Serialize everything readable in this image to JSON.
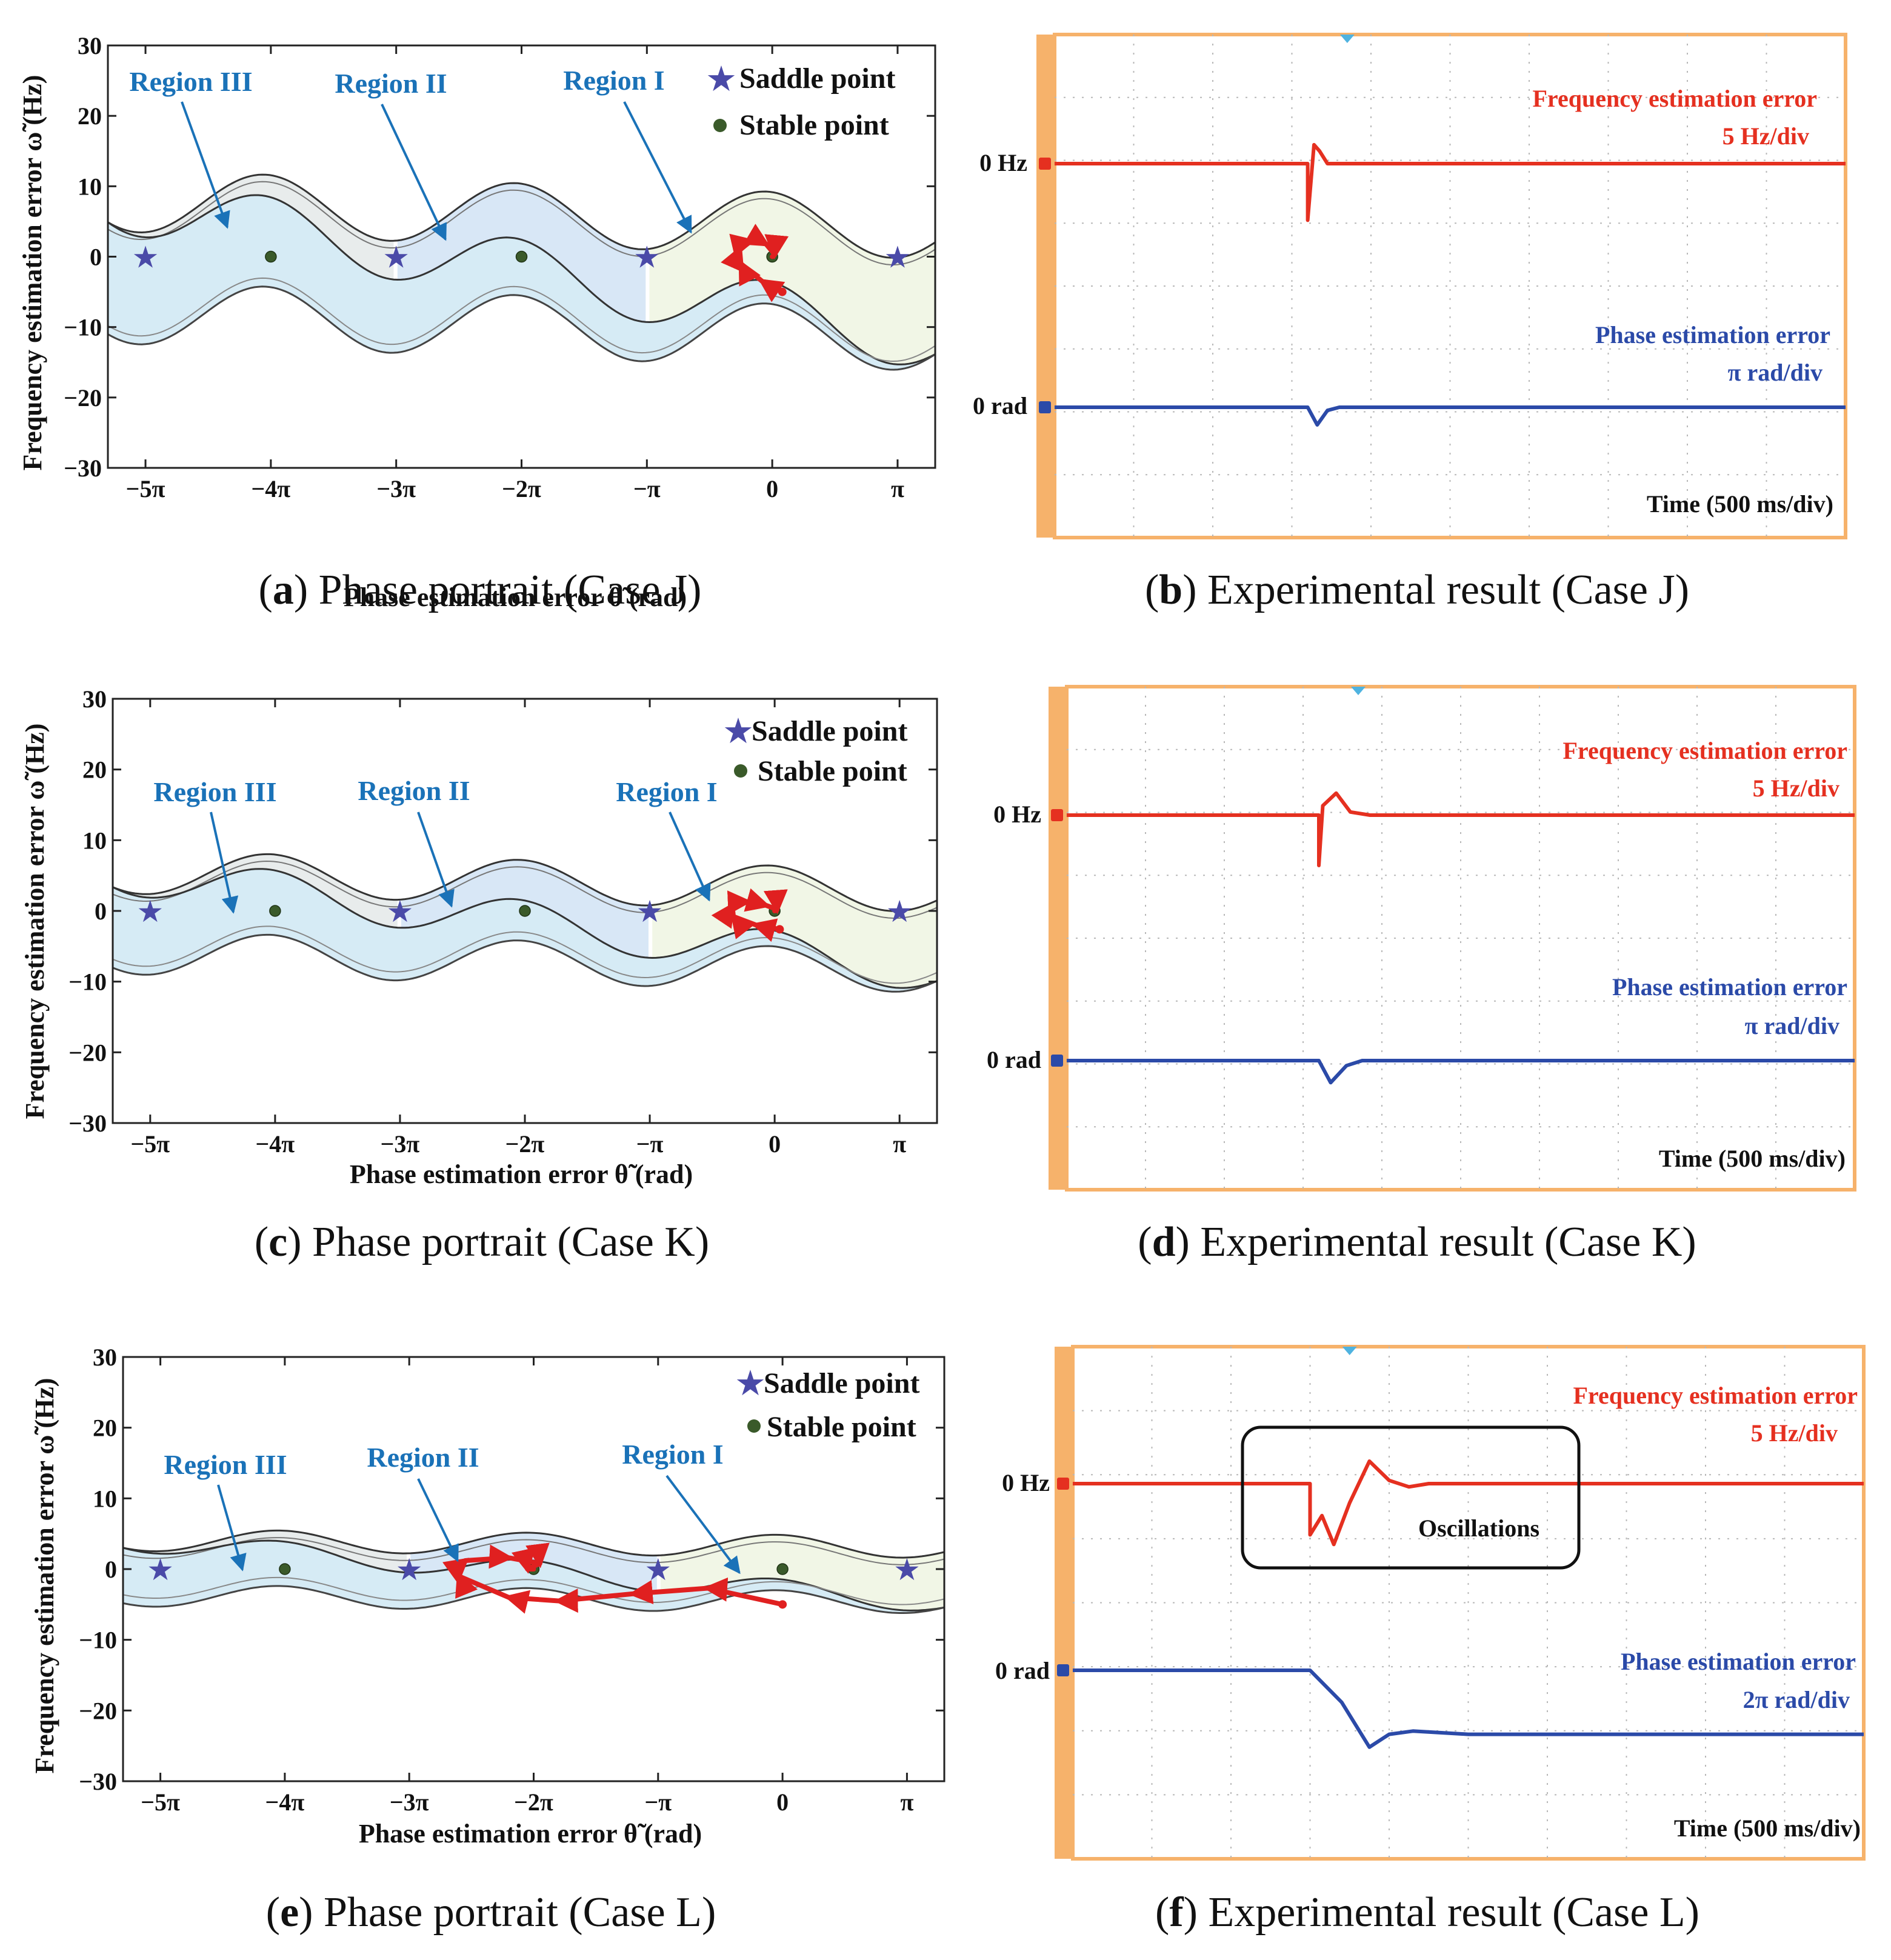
{
  "colors": {
    "saddle": "#4a4aa8",
    "stable": "#3a5a2a",
    "trajectory": "#e02020",
    "region_label": "#1a72b8",
    "region1_fill": "#f1f6e6",
    "region2_fill": "#d8e7f6",
    "region3_fill": "#e8ecec",
    "band_fill": "#cfe7f3",
    "scope_frame": "#f6b26b",
    "scope_red": "#e53020",
    "scope_blue": "#2b4aa8",
    "scope_grid": "#b8b8b8"
  },
  "panels": [
    {
      "id": "a",
      "kind": "phase",
      "caption_letter": "a",
      "caption_text": "Phase portrait (Case J)",
      "chart_data": {
        "type": "line",
        "title": "Phase portrait (Case J)",
        "xlabel": "Phase estimation error θ̃ (rad)",
        "ylabel": "Frequency estimation error ω̃ (Hz)",
        "xlim_pi": [
          -5.3,
          1.3
        ],
        "ylim": [
          -30,
          30
        ],
        "yticks": [
          30,
          20,
          10,
          0,
          -10,
          -20,
          -30
        ],
        "ytick_labels": [
          "30",
          "20",
          "10",
          "0",
          "−10",
          "−20",
          "−30"
        ],
        "xticks_pi": [
          -5,
          -4,
          -3,
          -2,
          -1,
          0,
          1
        ],
        "xtick_labels": [
          "−5π",
          "−4π",
          "−3π",
          "−2π",
          "−π",
          "0",
          "π"
        ],
        "saddle_points_pi": [
          -5,
          -3,
          -1,
          1
        ],
        "stable_points_pi": [
          -4,
          -2,
          0
        ],
        "legend": [
          "Saddle point",
          "Stable point"
        ],
        "legend_position": "top-right",
        "regions": [
          "Region III",
          "Region II",
          "Region I"
        ],
        "separatrix_amplitude_hz": 8,
        "separatrix_offset_hz": -2.5,
        "separatrix_slope_hz_per_pi": 0.6,
        "trajectory": [
          [
            0.08,
            -5.0
          ],
          [
            -0.08,
            -3.5
          ],
          [
            -0.25,
            -1.0
          ],
          [
            -0.26,
            1.0
          ],
          [
            -0.17,
            2.2
          ],
          [
            -0.05,
            1.8
          ],
          [
            0.02,
            0.3
          ],
          [
            0.0,
            0.0
          ]
        ]
      }
    },
    {
      "id": "b",
      "kind": "scope",
      "caption_letter": "b",
      "caption_text": "Experimental result (Case J)",
      "chart_data": {
        "type": "line",
        "title": "Experimental result (Case J)",
        "xlabel": "Time (500 ms/div)",
        "ch2_label": "Frequency estimation error",
        "ch2_scale": "5 Hz/div",
        "ch2_zero": "0 Hz",
        "ch1_label": "Phase estimation error",
        "ch1_scale": "π rad/div",
        "ch1_zero": "0 rad",
        "grid": {
          "x_div": 10,
          "y_div": 8
        },
        "disturbance_at_div": 3.2,
        "freq_series_div": [
          [
            0,
            0
          ],
          [
            3.2,
            0
          ],
          [
            3.2,
            -0.9
          ],
          [
            3.28,
            0.3
          ],
          [
            3.35,
            0.2
          ],
          [
            3.45,
            0
          ],
          [
            10,
            0
          ]
        ],
        "phase_series_div": [
          [
            0,
            0
          ],
          [
            3.2,
            0
          ],
          [
            3.32,
            -0.28
          ],
          [
            3.45,
            -0.05
          ],
          [
            3.6,
            0
          ],
          [
            10,
            0
          ]
        ]
      }
    },
    {
      "id": "c",
      "kind": "phase",
      "caption_letter": "c",
      "caption_text": "Phase portrait (Case K)",
      "chart_data": {
        "type": "line",
        "title": "Phase portrait (Case K)",
        "xlabel": "Phase estimation error θ̃ (rad)",
        "ylabel": "Frequency estimation error ω̃ (Hz)",
        "xlim_pi": [
          -5.3,
          1.3
        ],
        "ylim": [
          -30,
          30
        ],
        "yticks": [
          30,
          20,
          10,
          0,
          -10,
          -20,
          -30
        ],
        "ytick_labels": [
          "30",
          "20",
          "10",
          "0",
          "−10",
          "−20",
          "−30"
        ],
        "xticks_pi": [
          -5,
          -4,
          -3,
          -2,
          -1,
          0,
          1
        ],
        "xtick_labels": [
          "−5π",
          "−4π",
          "−3π",
          "−2π",
          "−π",
          "0",
          "π"
        ],
        "saddle_points_pi": [
          -5,
          -3,
          -1,
          1
        ],
        "stable_points_pi": [
          -4,
          -2,
          0
        ],
        "legend": [
          "Saddle point",
          "Stable point"
        ],
        "legend_position": "top-right",
        "regions": [
          "Region III",
          "Region II",
          "Region I"
        ],
        "separatrix_amplitude_hz": 5.5,
        "separatrix_offset_hz": -2.5,
        "separatrix_slope_hz_per_pi": 0.4,
        "trajectory": [
          [
            0.04,
            -2.6
          ],
          [
            -0.15,
            -2.0
          ],
          [
            -0.33,
            -0.8
          ],
          [
            -0.34,
            0.7
          ],
          [
            -0.22,
            1.3
          ],
          [
            -0.07,
            0.8
          ],
          [
            0.02,
            0.2
          ],
          [
            0.0,
            0.0
          ]
        ]
      }
    },
    {
      "id": "d",
      "kind": "scope",
      "caption_letter": "d",
      "caption_text": "Experimental result (Case K)",
      "chart_data": {
        "type": "line",
        "title": "Experimental result (Case K)",
        "xlabel": "Time (500 ms/div)",
        "ch2_label": "Frequency estimation error",
        "ch2_scale": "5 Hz/div",
        "ch2_zero": "0 Hz",
        "ch1_label": "Phase estimation error",
        "ch1_scale": "π rad/div",
        "ch1_zero": "0 rad",
        "grid": {
          "x_div": 10,
          "y_div": 8
        },
        "disturbance_at_div": 3.2,
        "freq_series_div": [
          [
            0,
            0
          ],
          [
            3.2,
            0
          ],
          [
            3.2,
            -0.8
          ],
          [
            3.25,
            0.15
          ],
          [
            3.42,
            0.35
          ],
          [
            3.6,
            0.05
          ],
          [
            3.85,
            0
          ],
          [
            10,
            0
          ]
        ],
        "phase_series_div": [
          [
            0,
            0
          ],
          [
            3.2,
            0
          ],
          [
            3.35,
            -0.35
          ],
          [
            3.55,
            -0.08
          ],
          [
            3.75,
            0
          ],
          [
            10,
            0
          ]
        ]
      }
    },
    {
      "id": "e",
      "kind": "phase",
      "caption_letter": "e",
      "caption_text": "Phase portrait (Case L)",
      "chart_data": {
        "type": "line",
        "title": "Phase portrait (Case L)",
        "xlabel": "Phase estimation error θ̃ (rad)",
        "ylabel": "Frequency estimation error ω̃ (Hz)",
        "xlim_pi": [
          -5.3,
          1.3
        ],
        "ylim": [
          -30,
          30
        ],
        "yticks": [
          30,
          20,
          10,
          0,
          -10,
          -20,
          -30
        ],
        "ytick_labels": [
          "30",
          "20",
          "10",
          "0",
          "−10",
          "−20",
          "−30"
        ],
        "xticks_pi": [
          -5,
          -4,
          -3,
          -2,
          -1,
          0,
          1
        ],
        "xtick_labels": [
          "−5π",
          "−4π",
          "−3π",
          "−2π",
          "−π",
          "0",
          "π"
        ],
        "saddle_points_pi": [
          -5,
          -3,
          -1,
          1
        ],
        "stable_points_pi": [
          -4,
          -2,
          0
        ],
        "legend": [
          "Saddle point",
          "Stable point"
        ],
        "legend_position": "top-right",
        "regions": [
          "Region III",
          "Region II",
          "Region I"
        ],
        "separatrix_amplitude_hz": 2.8,
        "separatrix_offset_hz": -1.2,
        "separatrix_slope_hz_per_pi": 0.15,
        "trajectory": [
          [
            0.0,
            -5.0
          ],
          [
            -0.6,
            -2.7
          ],
          [
            -1.2,
            -3.5
          ],
          [
            -1.8,
            -4.5
          ],
          [
            -2.2,
            -4.0
          ],
          [
            -2.6,
            -1.0
          ],
          [
            -2.55,
            1.2
          ],
          [
            -2.2,
            1.6
          ],
          [
            -1.95,
            0.8
          ],
          [
            -2.05,
            0.0
          ],
          [
            -2.0,
            0.0
          ]
        ]
      }
    },
    {
      "id": "f",
      "kind": "scope",
      "caption_letter": "f",
      "caption_text": "Experimental result (Case L)",
      "chart_data": {
        "type": "line",
        "title": "Experimental result (Case L)",
        "xlabel": "Time (500 ms/div)",
        "ch2_label": "Frequency estimation error",
        "ch2_scale": "5 Hz/div",
        "ch2_zero": "0 Hz",
        "ch1_label": "Phase estimation error",
        "ch1_scale": "2π rad/div",
        "ch1_zero": "0 rad",
        "annotation": "Oscillations",
        "grid": {
          "x_div": 10,
          "y_div": 8
        },
        "disturbance_at_div": 3.0,
        "freq_series_div": [
          [
            0,
            0
          ],
          [
            3.0,
            0
          ],
          [
            3.0,
            -0.8
          ],
          [
            3.15,
            -0.5
          ],
          [
            3.3,
            -0.95
          ],
          [
            3.5,
            -0.3
          ],
          [
            3.75,
            0.35
          ],
          [
            4.0,
            0.05
          ],
          [
            4.25,
            -0.05
          ],
          [
            4.5,
            0
          ],
          [
            10,
            0
          ]
        ],
        "phase_series_div": [
          [
            0,
            0
          ],
          [
            3.0,
            0
          ],
          [
            3.4,
            -0.5
          ],
          [
            3.75,
            -1.2
          ],
          [
            4.0,
            -1.0
          ],
          [
            4.3,
            -0.95
          ],
          [
            5.0,
            -1.0
          ],
          [
            10,
            -1.0
          ]
        ]
      }
    }
  ]
}
